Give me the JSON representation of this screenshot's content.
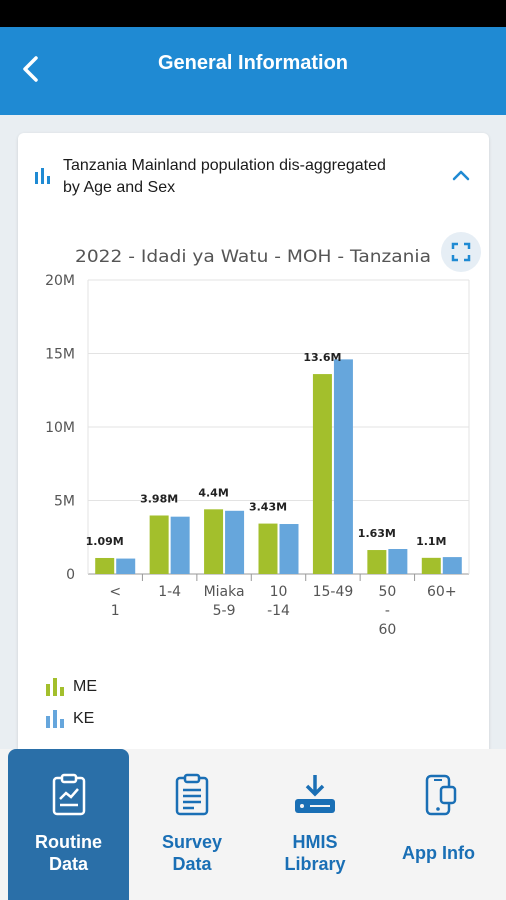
{
  "app_bar": {
    "title": "General Information"
  },
  "card": {
    "title": "Tanzania Mainland population dis-aggregated by Age and Sex",
    "chart_title": "2022 - Idadi ya Watu - MOH - Tanzania"
  },
  "chart_data": {
    "type": "bar",
    "title": "2022 - Idadi ya Watu - MOH - Tanzania",
    "categories": [
      [
        "<",
        "1"
      ],
      [
        "1-4"
      ],
      [
        "Miaka",
        "5-9"
      ],
      [
        "10",
        "-14"
      ],
      [
        "15-49"
      ],
      [
        "50",
        "-",
        "60"
      ],
      [
        "60+"
      ]
    ],
    "series": [
      {
        "name": "ME",
        "color": "#a3bf2c",
        "values": [
          1.09,
          3.98,
          4.4,
          3.43,
          13.6,
          1.63,
          1.1
        ]
      },
      {
        "name": "KE",
        "color": "#66a6dc",
        "values": [
          1.05,
          3.9,
          4.3,
          3.4,
          14.6,
          1.7,
          1.15
        ]
      }
    ],
    "data_labels": [
      "1.09M",
      "3.98M",
      "4.4M",
      "3.43M",
      "13.6M",
      "1.63M",
      "1.1M"
    ],
    "y_ticks": [
      "0",
      "5M",
      "10M",
      "15M",
      "20M"
    ],
    "ylim": [
      0,
      20
    ],
    "grid": true,
    "legend_position": "bottom-left"
  },
  "legend": [
    {
      "name": "ME",
      "color": "#a3bf2c"
    },
    {
      "name": "KE",
      "color": "#66a6dc"
    }
  ],
  "nav": [
    {
      "label1": "Routine",
      "label2": "Data",
      "icon": "clipboard-chart-icon",
      "active": true
    },
    {
      "label1": "Survey",
      "label2": "Data",
      "icon": "clipboard-list-icon",
      "active": false
    },
    {
      "label1": "HMIS",
      "label2": "Library",
      "icon": "download-drive-icon",
      "active": false
    },
    {
      "label1": "App Info",
      "label2": "",
      "icon": "phone-info-icon",
      "active": false
    }
  ]
}
